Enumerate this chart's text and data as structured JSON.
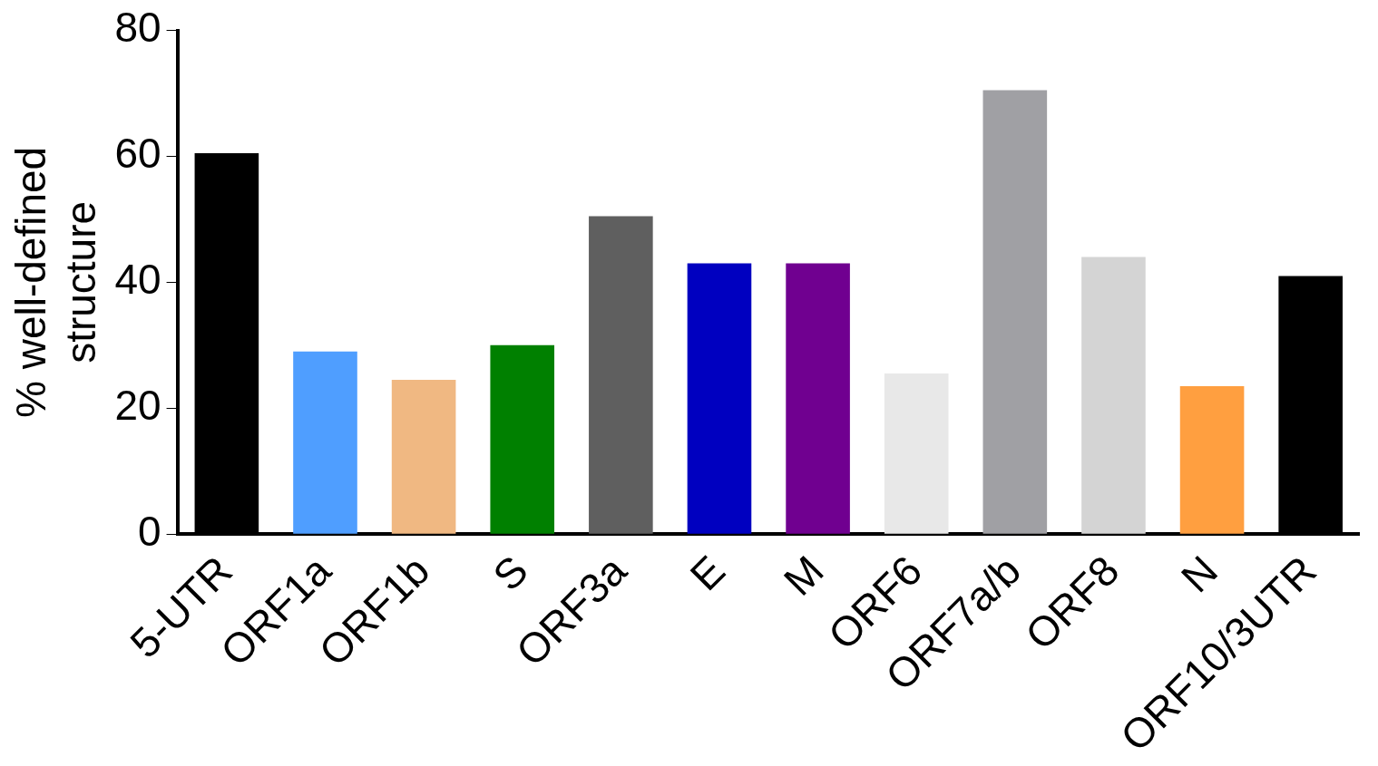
{
  "chart_data": {
    "type": "bar",
    "ylabel": "% well-defined structure",
    "categories": [
      "5-UTR",
      "ORF1a",
      "ORF1b",
      "S",
      "ORF3a",
      "E",
      "M",
      "ORF6",
      "ORF7a/b",
      "ORF8",
      "N",
      "ORF10/3UTR"
    ],
    "values": [
      60.5,
      29,
      24.5,
      30,
      50.5,
      43,
      43,
      25.5,
      70.5,
      44,
      23.5,
      41
    ],
    "colors": [
      "#000000",
      "#4f9eff",
      "#f0b882",
      "#008000",
      "#5f5f5f",
      "#0000c0",
      "#700090",
      "#e8e8e8",
      "#a0a0a4",
      "#d4d4d4",
      "#ff9f40",
      "#000000"
    ],
    "ylim": [
      0,
      80
    ],
    "yticks": [
      0,
      20,
      40,
      60,
      80
    ],
    "grid": false,
    "legend": false
  }
}
